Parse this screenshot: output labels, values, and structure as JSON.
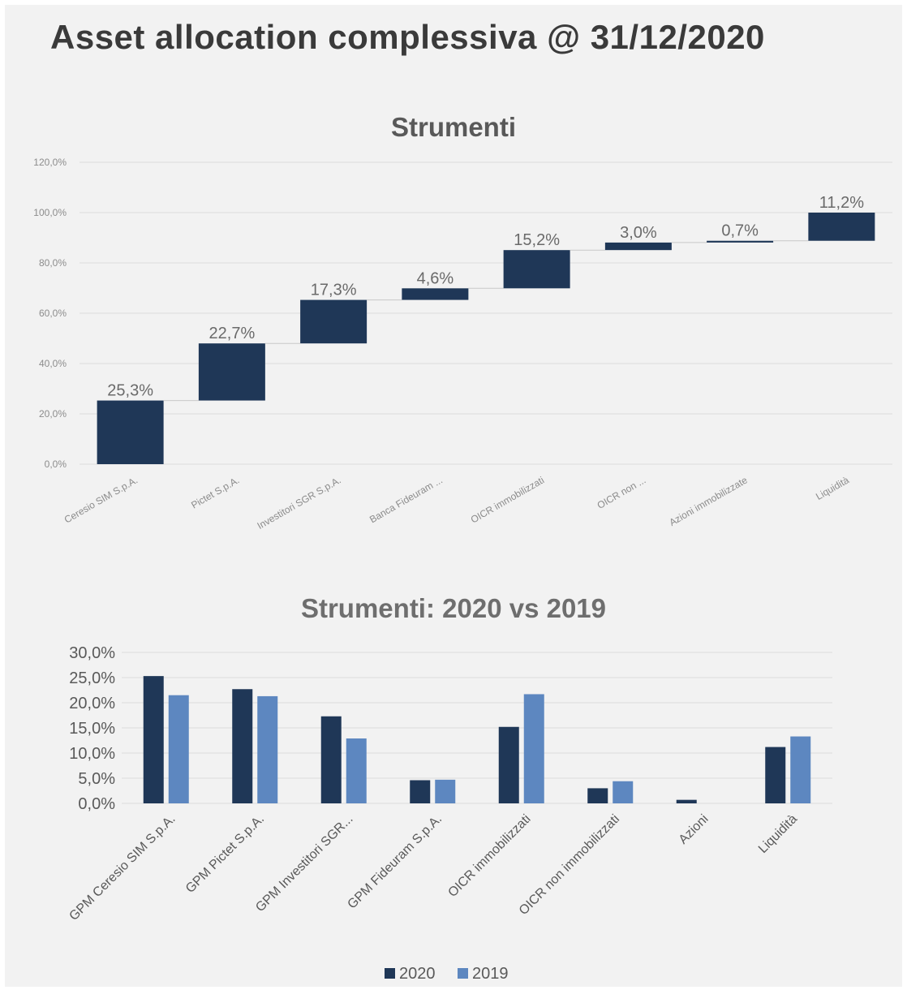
{
  "page": {
    "title": "Asset allocation complessiva @ 31/12/2020"
  },
  "colors": {
    "series_2020": "#1f3757",
    "series_2019": "#5d87c0",
    "grid": "#dcdcdc",
    "background": "#f2f2f2"
  },
  "chart_data": [
    {
      "type": "bar",
      "subtype": "waterfall",
      "title": "Strumenti",
      "categories": [
        "Ceresio SIM S.p.A.",
        "Pictet S.p.A.",
        "Investitori SGR S.p.A.",
        "Banca Fideuram ...",
        "OICR immobilizzati",
        "OICR non ...",
        "Azioni immobilizzate",
        "Liquidità"
      ],
      "values": [
        25.3,
        22.7,
        17.3,
        4.6,
        15.2,
        3.0,
        0.7,
        11.2
      ],
      "data_labels": [
        "25,3%",
        "22,7%",
        "17,3%",
        "4,6%",
        "15,2%",
        "3,0%",
        "0,7%",
        "11,2%"
      ],
      "yticks": [
        "0,0%",
        "20,0%",
        "40,0%",
        "60,0%",
        "80,0%",
        "100,0%",
        "120,0%"
      ],
      "ylim": [
        0,
        120
      ],
      "grid": true,
      "legend": "none"
    },
    {
      "type": "bar",
      "title": "Strumenti: 2020 vs 2019",
      "categories": [
        "GPM Ceresio SIM S.p.A.",
        "GPM Pictet S.p.A.",
        "GPM Investitori SGR...",
        "GPM Fideuram S.p.A.",
        "OICR immobilizzati",
        "OICR non immobilizzati",
        "Azioni",
        "Liquidità"
      ],
      "series": [
        {
          "name": "2020",
          "values": [
            25.3,
            22.7,
            17.3,
            4.6,
            15.2,
            3.0,
            0.7,
            11.2
          ]
        },
        {
          "name": "2019",
          "values": [
            21.5,
            21.3,
            12.9,
            4.7,
            21.7,
            4.4,
            0.0,
            13.3
          ]
        }
      ],
      "yticks": [
        "0,0%",
        "5,0%",
        "10,0%",
        "15,0%",
        "20,0%",
        "25,0%",
        "30,0%"
      ],
      "ylim": [
        0,
        30
      ],
      "grid": true,
      "legend": "bottom"
    }
  ]
}
